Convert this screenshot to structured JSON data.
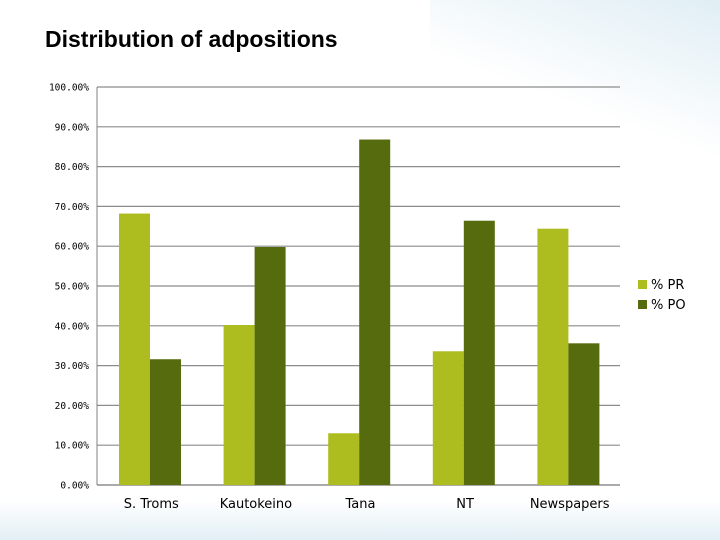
{
  "page": {
    "title": "Distribution of adpositions"
  },
  "chart_data": {
    "type": "bar",
    "title": "Distribution of adpositions",
    "xlabel": "",
    "ylabel": "",
    "categories": [
      "S. Troms",
      "Kautokeino",
      "Tana",
      "NT",
      "Newspapers"
    ],
    "series": [
      {
        "name": "% PR",
        "color": "#adbc1e",
        "values": [
          68.2,
          40.2,
          13.0,
          33.6,
          64.4
        ]
      },
      {
        "name": "% PO",
        "color": "#556b0d",
        "values": [
          31.6,
          59.8,
          86.8,
          66.4,
          35.6
        ]
      }
    ],
    "ylim": [
      0,
      100
    ],
    "y_ticks": [
      0,
      10,
      20,
      30,
      40,
      50,
      60,
      70,
      80,
      90,
      100
    ],
    "y_tick_labels": [
      "0.00%",
      "10.00%",
      "20.00%",
      "30.00%",
      "40.00%",
      "50.00%",
      "60.00%",
      "70.00%",
      "80.00%",
      "90.00%",
      "100.00%"
    ],
    "grid": true,
    "legend_position": "right"
  }
}
